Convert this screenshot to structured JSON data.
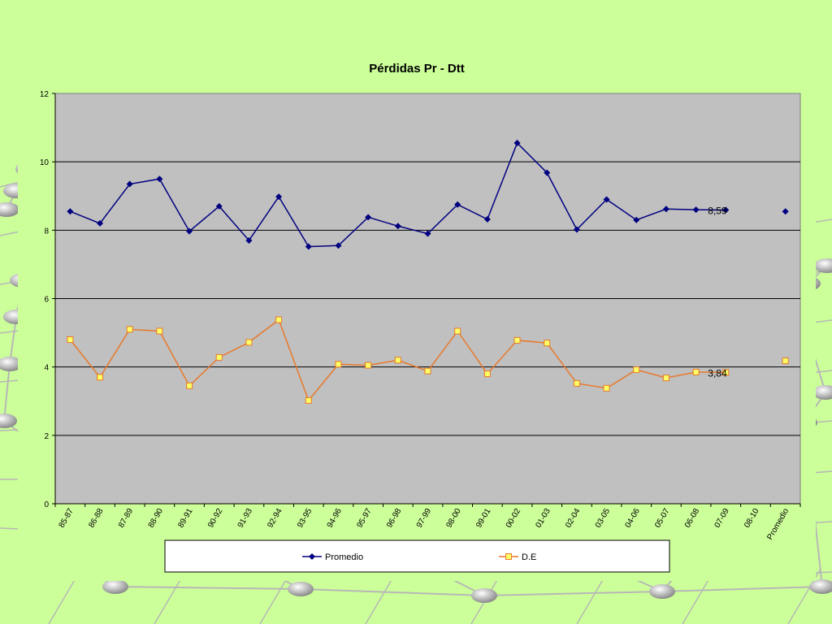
{
  "chart_data": {
    "type": "line",
    "title": "Pérdidas Pr - Dtt",
    "categories": [
      "85-87",
      "86-88",
      "87-89",
      "88-90",
      "89-91",
      "90-92",
      "91-93",
      "92-94",
      "93-95",
      "94-96",
      "95-97",
      "96-98",
      "97-99",
      "98-00",
      "99-01",
      "00-02",
      "01-03",
      "02-04",
      "03-05",
      "04-06",
      "05-07",
      "06-08",
      "07-09",
      "08-10",
      "Promedio"
    ],
    "ylim": [
      0,
      12
    ],
    "yticks": [
      "0",
      "2",
      "4",
      "6",
      "8",
      "10",
      "12"
    ],
    "grid": true,
    "legend_position": "bottom",
    "series": [
      {
        "name": "Promedio",
        "color": "#000080",
        "marker": "diamond",
        "values": [
          8.55,
          8.2,
          9.35,
          9.5,
          7.97,
          8.7,
          7.7,
          8.98,
          7.52,
          7.55,
          8.38,
          8.12,
          7.9,
          8.75,
          8.32,
          10.55,
          9.68,
          8.02,
          8.9,
          8.3,
          8.62,
          8.6,
          8.59,
          null,
          8.55
        ],
        "label_text": "8,59",
        "label_index": 22
      },
      {
        "name": "D.E",
        "color": "#e8782a",
        "marker": "square",
        "marker_fill": "#ffff66",
        "values": [
          4.8,
          3.7,
          5.1,
          5.05,
          3.45,
          4.28,
          4.72,
          5.38,
          3.02,
          4.08,
          4.05,
          4.2,
          3.88,
          5.05,
          3.8,
          4.78,
          4.7,
          3.52,
          3.38,
          3.92,
          3.68,
          3.85,
          3.84,
          null,
          4.18
        ],
        "label_text": "3,84",
        "label_index": 22
      }
    ]
  },
  "colors": {
    "background": "#ccff99",
    "plot_area": "#c0c0c0",
    "gridline": "#000000"
  }
}
